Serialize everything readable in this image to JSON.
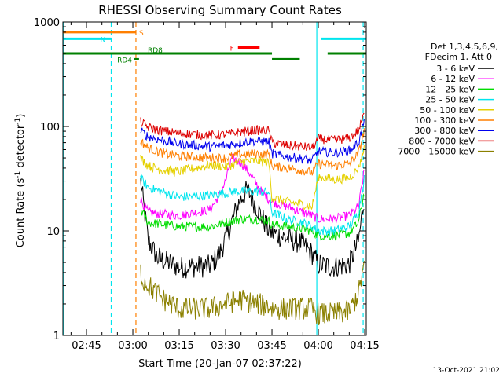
{
  "chart_data": {
    "type": "line",
    "title": "RHESSI Observing Summary Count Rates",
    "xlabel": "Start Time (20-Jan-07 02:37:22)",
    "ylabel_main": "Count Rate (s",
    "ylabel_sup1": "-1",
    "ylabel_mid": " detector",
    "ylabel_sup2": "-1",
    "ylabel_end": ")",
    "footer": "13-Oct-2021 21:02",
    "xlim": [
      "02:37:22",
      "04:15:30"
    ],
    "ylim": [
      1,
      1000
    ],
    "yscale": "log",
    "xticks": [
      {
        "t": "02:45",
        "label": "02:45"
      },
      {
        "t": "03:00",
        "label": "03:00"
      },
      {
        "t": "03:15",
        "label": "03:15"
      },
      {
        "t": "03:30",
        "label": "03:30"
      },
      {
        "t": "03:45",
        "label": "03:45"
      },
      {
        "t": "04:00",
        "label": "04:00"
      },
      {
        "t": "04:15",
        "label": "04:15"
      }
    ],
    "yticks": [
      {
        "v": 1,
        "label": "1"
      },
      {
        "v": 10,
        "label": "10"
      },
      {
        "v": 100,
        "label": "100"
      },
      {
        "v": 1000,
        "label": "1000"
      }
    ],
    "legend": {
      "header1": "Det 1,3,4,5,6,9,",
      "header2": "FDecim 1, Att 0",
      "entries": [
        {
          "label": "3 - 6 keV",
          "color": "#000000"
        },
        {
          "label": "6 - 12 keV",
          "color": "#ff00ff"
        },
        {
          "label": "12 - 25 keV",
          "color": "#00dd00"
        },
        {
          "label": "25 - 50 keV",
          "color": "#00e5ee"
        },
        {
          "label": "50 - 100 keV",
          "color": "#e5d000"
        },
        {
          "label": "100 - 300 keV",
          "color": "#ff7f00"
        },
        {
          "label": "300 - 800 keV",
          "color": "#0000ee"
        },
        {
          "label": "800 - 7000 keV",
          "color": "#dd0000"
        },
        {
          "label": "7000 - 15000 keV",
          "color": "#8b8000"
        }
      ]
    },
    "flags": [
      {
        "label": "S",
        "color": "#ff7f00",
        "segments": [
          [
            "02:37:22",
            "03:01:00"
          ]
        ],
        "level": 800
      },
      {
        "label": "N",
        "color": "#00e5ee",
        "segments": [
          [
            "02:37:22",
            "02:53:00"
          ],
          [
            "04:01:00",
            "04:15:30"
          ]
        ],
        "level": 690
      },
      {
        "label": "F",
        "color": "#ff0000",
        "segments": [
          [
            "03:34:00",
            "03:41:00"
          ]
        ],
        "level": 570
      },
      {
        "label": "RD8",
        "color": "#008000",
        "segments": [
          [
            "02:37:22",
            "03:45:00"
          ],
          [
            "04:03:00",
            "04:15:30"
          ]
        ],
        "level": 500
      },
      {
        "label": "",
        "color": "#008000",
        "segments": [
          [
            "03:45:00",
            "03:54:00"
          ]
        ],
        "level": 440
      },
      {
        "label": "RD4",
        "color": "#008000",
        "segments": [
          [
            "03:00:30",
            "03:02:00"
          ]
        ],
        "level": 440
      }
    ],
    "vlines": [
      {
        "t": "02:37:40",
        "color": "#00e5ee",
        "style": "solid"
      },
      {
        "t": "02:53:00",
        "color": "#00e5ee",
        "style": "dashed"
      },
      {
        "t": "03:01:00",
        "color": "#ff7f00",
        "style": "dashed"
      },
      {
        "t": "03:59:30",
        "color": "#00e5ee",
        "style": "solid"
      },
      {
        "t": "04:14:30",
        "color": "#00e5ee",
        "style": "dashed"
      }
    ],
    "series": [
      {
        "name": "3 - 6 keV",
        "color": "#000000",
        "x": [
          "03:02:30",
          "03:05:00",
          "03:08:00",
          "03:15:00",
          "03:25:00",
          "03:28:00",
          "03:31:00",
          "03:34:00",
          "03:37:00",
          "03:40:00",
          "03:44:00",
          "03:45:00",
          "03:50:00",
          "03:55:00",
          "03:58:00",
          "04:00:00",
          "04:05:00",
          "04:10:00",
          "04:13:00",
          "04:15:00"
        ],
        "values": [
          30,
          8,
          5.5,
          4.5,
          4.6,
          6,
          10,
          18,
          25,
          17,
          10,
          9.5,
          8.5,
          7.5,
          6,
          4.8,
          4.5,
          4.8,
          8,
          22
        ]
      },
      {
        "name": "6 - 12 keV",
        "color": "#ff00ff",
        "x": [
          "03:02:30",
          "03:05:00",
          "03:15:00",
          "03:25:00",
          "03:28:00",
          "03:30:00",
          "03:32:00",
          "03:35:00",
          "03:38:00",
          "03:41:00",
          "03:44:00",
          "03:45:00",
          "03:50:00",
          "03:55:00",
          "03:58:00",
          "04:00:00",
          "04:05:00",
          "04:10:00",
          "04:13:00",
          "04:15:00"
        ],
        "values": [
          20,
          15,
          14,
          16,
          22,
          30,
          50,
          45,
          35,
          25,
          20,
          19,
          17,
          15,
          14,
          13,
          13,
          14,
          17,
          40
        ]
      },
      {
        "name": "12 - 25 keV",
        "color": "#00dd00",
        "x": [
          "03:02:30",
          "03:05:00",
          "03:15:00",
          "03:25:00",
          "03:30:00",
          "03:35:00",
          "03:40:00",
          "03:44:00",
          "03:45:00",
          "03:50:00",
          "03:55:00",
          "03:58:00",
          "04:00:00",
          "04:05:00",
          "04:10:00",
          "04:13:00",
          "04:15:00"
        ],
        "values": [
          16,
          12,
          11,
          11,
          12,
          13,
          13,
          12.5,
          11.5,
          11,
          10.5,
          10,
          9,
          9,
          9.5,
          12,
          25
        ]
      },
      {
        "name": "25 - 50 keV",
        "color": "#00e5ee",
        "x": [
          "03:02:30",
          "03:05:00",
          "03:15:00",
          "03:25:00",
          "03:30:00",
          "03:35:00",
          "03:40:00",
          "03:44:00",
          "03:45:00",
          "03:50:00",
          "03:55:00",
          "03:58:00",
          "04:00:00",
          "04:05:00",
          "04:10:00",
          "04:13:00",
          "04:15:00"
        ],
        "values": [
          32,
          26,
          21,
          22,
          23,
          24,
          24,
          23.5,
          15,
          13,
          12,
          11,
          10,
          10,
          11,
          15,
          35
        ]
      },
      {
        "name": "50 - 100 keV",
        "color": "#e5d000",
        "x": [
          "03:02:30",
          "03:05:00",
          "03:10:00",
          "03:15:00",
          "03:25:00",
          "03:30:00",
          "03:35:00",
          "03:40:00",
          "03:44:00",
          "03:45:00",
          "03:50:00",
          "03:55:00",
          "03:58:00",
          "04:00:00",
          "04:05:00",
          "04:10:00",
          "04:13:00",
          "04:15:00"
        ],
        "values": [
          50,
          42,
          38,
          37,
          43,
          41,
          46,
          47,
          45,
          21,
          19,
          18,
          17,
          33,
          31,
          32,
          40,
          65
        ]
      },
      {
        "name": "100 - 300 keV",
        "color": "#ff7f00",
        "x": [
          "03:02:30",
          "03:05:00",
          "03:10:00",
          "03:15:00",
          "03:25:00",
          "03:30:00",
          "03:35:00",
          "03:40:00",
          "03:44:00",
          "03:45:00",
          "03:50:00",
          "03:55:00",
          "03:58:00",
          "04:00:00",
          "04:05:00",
          "04:10:00",
          "04:13:00",
          "04:15:00"
        ],
        "values": [
          72,
          62,
          55,
          52,
          50,
          50,
          54,
          55,
          54,
          42,
          40,
          38,
          36,
          44,
          42,
          44,
          55,
          95
        ]
      },
      {
        "name": "300 - 800 keV",
        "color": "#0000ee",
        "x": [
          "03:02:30",
          "03:05:00",
          "03:10:00",
          "03:15:00",
          "03:25:00",
          "03:30:00",
          "03:35:00",
          "03:40:00",
          "03:44:00",
          "03:45:00",
          "03:50:00",
          "03:55:00",
          "03:58:00",
          "04:00:00",
          "04:05:00",
          "04:10:00",
          "04:13:00",
          "04:15:00"
        ],
        "values": [
          90,
          80,
          73,
          68,
          64,
          66,
          70,
          73,
          71,
          55,
          51,
          49,
          47,
          58,
          56,
          59,
          70,
          118
        ]
      },
      {
        "name": "800 - 7000 keV",
        "color": "#dd0000",
        "x": [
          "03:02:30",
          "03:05:00",
          "03:10:00",
          "03:15:00",
          "03:25:00",
          "03:30:00",
          "03:35:00",
          "03:40:00",
          "03:44:00",
          "03:45:00",
          "03:50:00",
          "03:55:00",
          "03:58:00",
          "04:00:00",
          "04:05:00",
          "04:10:00",
          "04:13:00",
          "04:15:00"
        ],
        "values": [
          110,
          98,
          90,
          86,
          82,
          84,
          89,
          92,
          91,
          70,
          66,
          64,
          62,
          76,
          74,
          77,
          92,
          135
        ]
      },
      {
        "name": "7000 - 15000 keV",
        "color": "#8b8000",
        "x": [
          "03:02:30",
          "03:03:00",
          "03:05:00",
          "03:10:00",
          "03:15:00",
          "03:25:00",
          "03:30:00",
          "03:35:00",
          "03:40:00",
          "03:44:00",
          "03:45:00",
          "03:50:00",
          "03:55:00",
          "03:58:00",
          "04:00:00",
          "04:05:00",
          "04:10:00",
          "04:13:00",
          "04:15:00"
        ],
        "values": [
          4,
          3.5,
          3,
          2.2,
          1.8,
          1.8,
          2,
          2.2,
          2,
          1.9,
          1.8,
          1.8,
          1.8,
          1.8,
          1.6,
          1.6,
          1.7,
          2.5,
          5
        ]
      }
    ]
  }
}
